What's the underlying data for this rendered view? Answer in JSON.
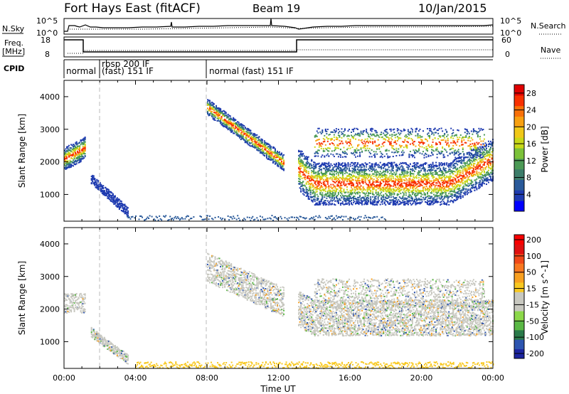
{
  "header": {
    "station": "Fort Hays East (fitACF)",
    "beam": "Beam 19",
    "date": "10/Jan/2015"
  },
  "left_labels": {
    "nsky": "N.Sky",
    "freq": "Freq.",
    "freq_unit": "[MHz]",
    "cpid": "CPID"
  },
  "right_labels": {
    "nsearch": "N.Search",
    "nave": "Nave"
  },
  "noise_axis": {
    "ticks": [
      "10^5",
      "10^0"
    ]
  },
  "freq_axis": {
    "ticks": [
      "18",
      "8"
    ]
  },
  "nave_axis": {
    "ticks": [
      "60",
      "0"
    ]
  },
  "noise_ticks_right": [
    "10^5",
    "10^0"
  ],
  "cpid_segments": [
    {
      "label": "normal",
      "start_h": 0.0
    },
    {
      "label": "rbsp 200 IF",
      "start_h": 2.0
    },
    {
      "label": "(fast) 151 IF",
      "start_h": 2.0
    },
    {
      "label": "normal (fast) 151 IF",
      "start_h": 8.0
    }
  ],
  "chart_data": [
    {
      "type": "heatmap",
      "title": "",
      "xlabel": "",
      "ylabel": "Slant Range [km]",
      "xlim": [
        0,
        24
      ],
      "ylim": [
        180,
        4500
      ],
      "yticks": [
        "1000",
        "2000",
        "3000",
        "4000"
      ],
      "colorbar": {
        "label": "Power [dB]",
        "ticks": [
          "4",
          "8",
          "12",
          "16",
          "20",
          "24",
          "28"
        ],
        "range": [
          0,
          30
        ],
        "colors": [
          "#0000ff",
          "#1f3bb0",
          "#2a5a9a",
          "#3c7d6a",
          "#4c9a56",
          "#7cc23a",
          "#c8d818",
          "#f0c818",
          "#f8a010",
          "#f87008",
          "#f83000",
          "#e00000"
        ]
      }
    },
    {
      "type": "heatmap",
      "title": "",
      "xlabel": "Time UT",
      "ylabel": "Slant Range [km]",
      "xlim": [
        0,
        24
      ],
      "ylim": [
        180,
        4500
      ],
      "yticks": [
        "1000",
        "2000",
        "3000",
        "4000"
      ],
      "xticks": [
        "00:00",
        "04:00",
        "08:00",
        "12:00",
        "16:00",
        "20:00",
        "00:00"
      ],
      "colorbar": {
        "label": "Velocity [m s^-1]",
        "ticks": [
          "200",
          "100",
          "50",
          "15",
          "-15",
          "-50",
          "-100",
          "-200"
        ],
        "colors": [
          "#1c24a0",
          "#2d55b0",
          "#2a7a4a",
          "#5ab845",
          "#8cd84a",
          "#c8c8c0",
          "#c8c8c0",
          "#f8c820",
          "#f8a020",
          "#f87820",
          "#f04818",
          "#e01010",
          "#f80000"
        ]
      }
    }
  ]
}
